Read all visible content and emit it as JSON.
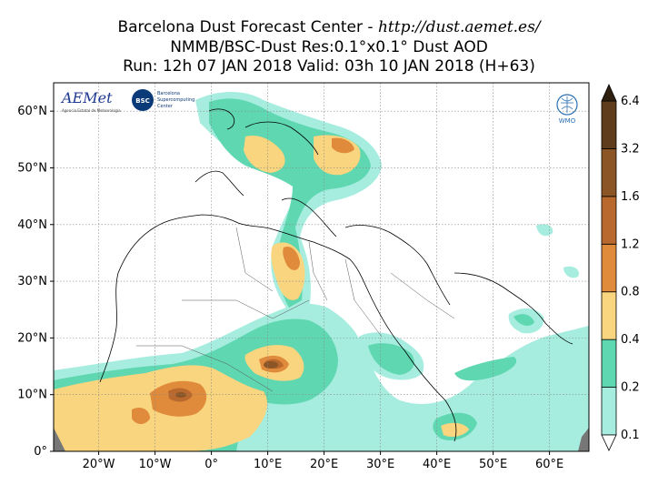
{
  "title": {
    "center_name": "Barcelona Dust Forecast Center - ",
    "url": "http://dust.aemet.es/",
    "model_line": "NMMB/BSC-Dust   Res:0.1°x0.1°   Dust AOD",
    "run_line": "Run: 12h 07 JAN 2018   Valid: 03h 10 JAN 2018 (H+63)"
  },
  "logos": {
    "aemet": "AEMet",
    "aemet_sub": "Agencia Estatal de Meteorología",
    "bsc": "BSC",
    "bsc_sub1": "Barcelona",
    "bsc_sub2": "Supercomputing",
    "bsc_sub3": "Center",
    "wmo": "WMO"
  },
  "axes": {
    "lat_ticks": [
      {
        "value": 60,
        "label": "60°N"
      },
      {
        "value": 50,
        "label": "50°N"
      },
      {
        "value": 40,
        "label": "40°N"
      },
      {
        "value": 30,
        "label": "30°N"
      },
      {
        "value": 20,
        "label": "20°N"
      },
      {
        "value": 10,
        "label": "10°N"
      },
      {
        "value": 0,
        "label": "0°"
      }
    ],
    "lon_ticks": [
      {
        "value": -20,
        "label": "20°W"
      },
      {
        "value": -10,
        "label": "10°W"
      },
      {
        "value": 0,
        "label": "0°"
      },
      {
        "value": 10,
        "label": "10°E"
      },
      {
        "value": 20,
        "label": "20°E"
      },
      {
        "value": 30,
        "label": "30°E"
      },
      {
        "value": 40,
        "label": "40°E"
      },
      {
        "value": 50,
        "label": "50°E"
      },
      {
        "value": 60,
        "label": "60°E"
      }
    ],
    "lon_range": [
      -28,
      67
    ],
    "lat_range": [
      0,
      65
    ],
    "grid": true
  },
  "colorbar": {
    "levels": [
      "0.1",
      "0.2",
      "0.4",
      "0.8",
      "1.2",
      "1.6",
      "3.2",
      "6.4"
    ],
    "colors": [
      "#a6ede0",
      "#5fd7b1",
      "#f8d57e",
      "#e08a3b",
      "#b9692d",
      "#8c5526",
      "#5f3c1c",
      "#2f200f"
    ]
  }
}
